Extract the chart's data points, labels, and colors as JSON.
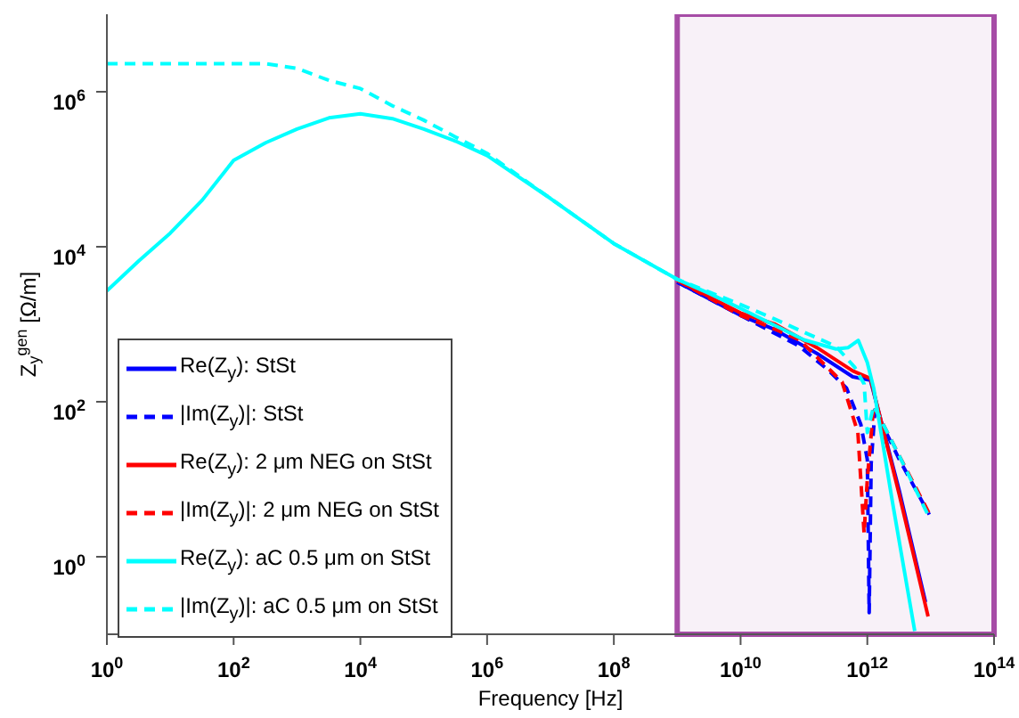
{
  "chart_data": {
    "type": "line",
    "xlabel": "Frequency [Hz]",
    "ylabel": "Z$_{y}$$^{gen}$ [Ω/m]",
    "log": "xy",
    "grid": false,
    "legend": "bottom left",
    "marker": "none",
    "xlim": [
      1,
      100000000000000.0
    ],
    "ylim": [
      0.1,
      10000000.0
    ],
    "xticks": [
      {
        "value": 1,
        "label": "10$^{0}$"
      },
      {
        "value": 100,
        "label": "10$^{2}$"
      },
      {
        "value": 10000.0,
        "label": "10$^{4}$"
      },
      {
        "value": 1000000.0,
        "label": "10$^{6}$"
      },
      {
        "value": 100000000.0,
        "label": "10$^{8}$"
      },
      {
        "value": 10000000000.0,
        "label": "10$^{10}$"
      },
      {
        "value": 1000000000000.0,
        "label": "10$^{12}$"
      },
      {
        "value": 100000000000000.0,
        "label": "10$^{14}$"
      }
    ],
    "yticks": [
      {
        "value": 1,
        "label": "10$^{0}$"
      },
      {
        "value": 100,
        "label": "10$^{2}$"
      },
      {
        "value": 10000.0,
        "label": "10$^{4}$"
      },
      {
        "value": 1000000.0,
        "label": "10$^{6}$"
      }
    ],
    "bands": [
      {
        "axis": "x",
        "from": 1000000000.0,
        "to": 100000000000000.0,
        "color": "#a64ca6"
      }
    ],
    "series": [
      {
        "name": "Re(Z$_{y}$): StSt",
        "color": "#0000ff",
        "line_style": "solid",
        "x": [
          1000000000.0,
          10000000000.0,
          35000000000.0,
          160000000000.0,
          590000000000.0,
          1120000000000.0,
          3200000000000.0,
          8300000000000.0
        ],
        "values": [
          3500,
          1300,
          850,
          420,
          210,
          190,
          7.1,
          0.26
        ]
      },
      {
        "name": "|Im(Z$_{y}$)|: StSt",
        "color": "#0000ff",
        "line_style": "dashed",
        "x": [
          1000000000.0,
          10000000000.0,
          32000000000.0,
          85000000000.0,
          250000000000.0,
          470000000000.0,
          790000000000.0,
          1000000000000.0,
          1070000000000.0,
          1150000000000.0,
          1320000000000.0,
          3200000000000.0,
          9500000000000.0
        ],
        "values": [
          3500,
          1300,
          790,
          520,
          250,
          150,
          51,
          18,
          0.19,
          16,
          79,
          18,
          3.5
        ]
      },
      {
        "name": "Re(Z$_{y}$): 2 μm NEG on StSt",
        "color": "#ff0000",
        "line_style": "solid",
        "x": [
          1000000000.0,
          10000000000.0,
          35000000000.0,
          160000000000.0,
          590000000000.0,
          1120000000000.0,
          3200000000000.0,
          9100000000000.0
        ],
        "values": [
          3700,
          1400,
          1000,
          500,
          250,
          200,
          6.3,
          0.17
        ]
      },
      {
        "name": "|Im(Z$_{y}$)|: 2 μm NEG on StSt",
        "color": "#ff0000",
        "line_style": "dashed",
        "x": [
          1000000000.0,
          10000000000.0,
          32000000000.0,
          85000000000.0,
          400000000000.0,
          710000000000.0,
          890000000000.0,
          1000000000000.0,
          1260000000000.0,
          3200000000000.0,
          9500000000000.0
        ],
        "values": [
          3700,
          1300,
          890,
          630,
          180,
          40,
          2,
          10,
          89,
          20,
          3.6
        ]
      },
      {
        "name": "Re(Z$_{y}$): aC 0.5 μm on StSt",
        "color": "#00ffff",
        "line_style": "solid",
        "x": [
          1,
          3.2,
          10,
          32,
          100,
          320,
          1000,
          3200,
          10000.0,
          32000.0,
          100000.0,
          320000.0,
          1000000.0,
          10000000.0,
          100000000.0,
          1000000000.0,
          3200000000.0,
          10000000000.0,
          32000000000.0,
          100000000000.0,
          320000000000.0,
          500000000000.0,
          720000000000.0,
          1000000000000.0,
          1260000000000.0,
          2500000000000.0,
          5600000000000.0
        ],
        "values": [
          2700,
          6600,
          15000,
          40000,
          130000,
          220000,
          330000,
          460000,
          520000,
          450000,
          330000,
          230000,
          150000,
          42000,
          11000,
          3800,
          2500,
          1600,
          1000,
          630,
          480,
          500,
          620,
          320,
          150,
          5,
          0.11
        ]
      },
      {
        "name": "|Im(Z$_{y}$)|: aC 0.5 μm on StSt",
        "color": "#00ffff",
        "line_style": "dashed",
        "x": [
          1,
          32,
          320,
          1000,
          3200,
          10000.0,
          32000.0,
          100000.0,
          320000.0,
          1000000.0,
          10000000.0,
          100000000.0,
          1000000000.0,
          3200000000.0,
          10000000000.0,
          32000000000.0,
          100000000000.0,
          320000000000.0,
          630000000000.0,
          890000000000.0,
          1000000000000.0,
          1260000000000.0,
          3200000000000.0,
          9500000000000.0
        ],
        "values": [
          2300000,
          2300000,
          2300000,
          2000000,
          1400000,
          1100000,
          660000,
          430000,
          260000,
          160000,
          42000,
          11000,
          3800,
          2600,
          1800,
          1200,
          790,
          520,
          280,
          170,
          40,
          89,
          20,
          3.2
        ]
      }
    ]
  }
}
